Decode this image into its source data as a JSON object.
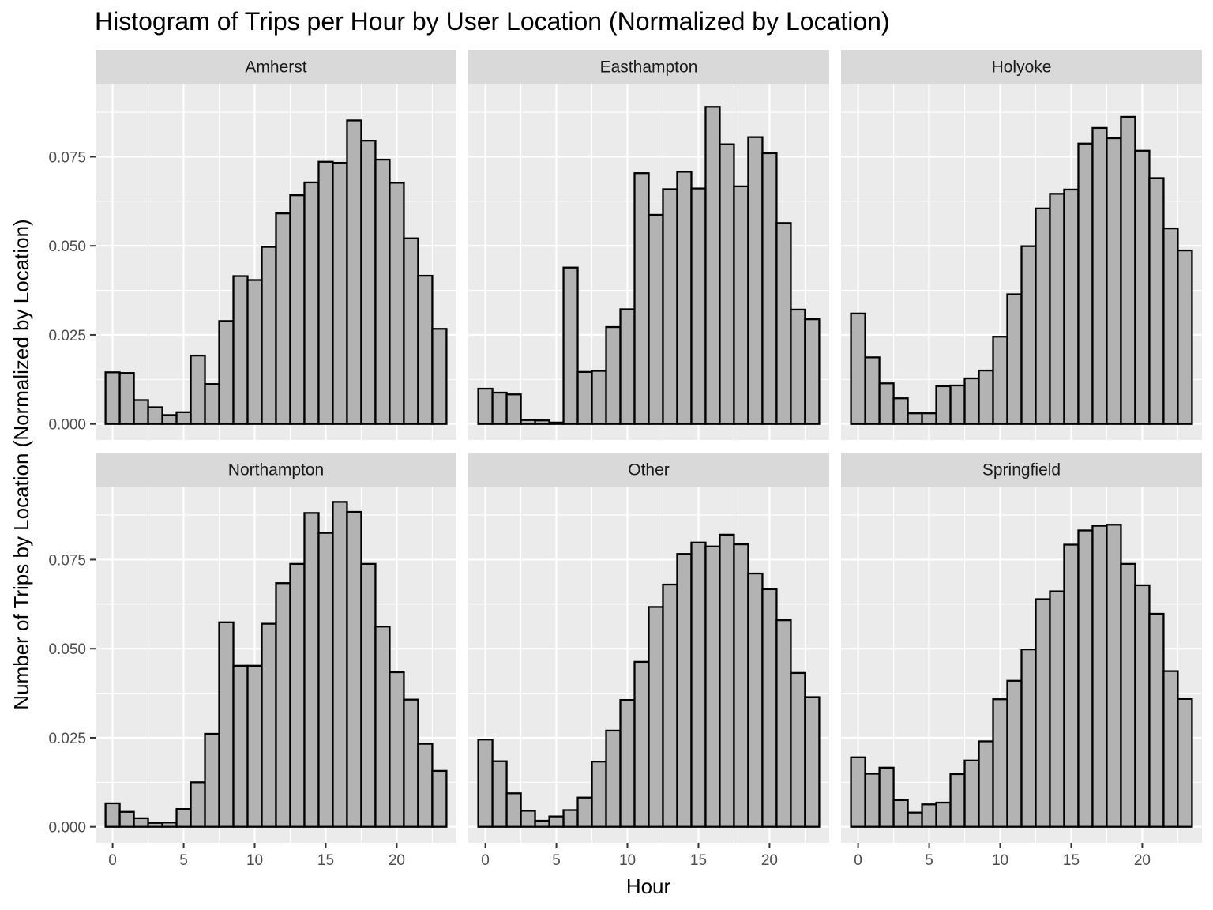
{
  "chart_data": {
    "type": "bar",
    "title": "Histogram of Trips per Hour by User Location (Normalized by Location)",
    "xlabel": "Hour",
    "ylabel": "Number of Trips by Location (Normalized by Location)",
    "x_ticks": [
      0,
      5,
      10,
      15,
      20
    ],
    "y_ticks": [
      0.0,
      0.025,
      0.05,
      0.075
    ],
    "y_tick_labels": [
      "0.000",
      "0.025",
      "0.050",
      "0.075"
    ],
    "xlim": [
      -1.2,
      24.2
    ],
    "ylim": [
      -0.0045,
      0.0955
    ],
    "categories": [
      0,
      1,
      2,
      3,
      4,
      5,
      6,
      7,
      8,
      9,
      10,
      11,
      12,
      13,
      14,
      15,
      16,
      17,
      18,
      19,
      20,
      21,
      22,
      23
    ],
    "grid": true,
    "facets": [
      {
        "name": "Amherst",
        "values": [
          0.0145,
          0.0143,
          0.0067,
          0.0047,
          0.0025,
          0.0033,
          0.0192,
          0.0112,
          0.0289,
          0.0415,
          0.0404,
          0.0497,
          0.0591,
          0.0642,
          0.0678,
          0.0736,
          0.0733,
          0.0852,
          0.0795,
          0.0742,
          0.0677,
          0.0521,
          0.0416,
          0.0267
        ]
      },
      {
        "name": "Easthampton",
        "values": [
          0.0099,
          0.0088,
          0.0083,
          0.0011,
          0.001,
          0.0004,
          0.0439,
          0.0146,
          0.0149,
          0.0272,
          0.0322,
          0.0704,
          0.0587,
          0.0659,
          0.0708,
          0.0661,
          0.089,
          0.0785,
          0.0667,
          0.0805,
          0.076,
          0.0564,
          0.0321,
          0.0294
        ]
      },
      {
        "name": "Holyoke",
        "values": [
          0.031,
          0.0187,
          0.0114,
          0.0072,
          0.003,
          0.003,
          0.0106,
          0.0108,
          0.0128,
          0.015,
          0.0245,
          0.0364,
          0.0499,
          0.0605,
          0.0646,
          0.0658,
          0.0787,
          0.0831,
          0.0802,
          0.0862,
          0.0767,
          0.069,
          0.0549,
          0.0487
        ]
      },
      {
        "name": "Northampton",
        "values": [
          0.0066,
          0.0042,
          0.0024,
          0.0011,
          0.0012,
          0.005,
          0.0125,
          0.0261,
          0.0574,
          0.0452,
          0.0452,
          0.057,
          0.0684,
          0.0738,
          0.0881,
          0.0825,
          0.0912,
          0.0884,
          0.0738,
          0.0562,
          0.0434,
          0.0357,
          0.0233,
          0.0157
        ]
      },
      {
        "name": "Other",
        "values": [
          0.0245,
          0.0184,
          0.0094,
          0.0045,
          0.0017,
          0.0029,
          0.0047,
          0.0082,
          0.0183,
          0.027,
          0.0356,
          0.0463,
          0.0617,
          0.068,
          0.0766,
          0.0798,
          0.0787,
          0.082,
          0.0793,
          0.0711,
          0.0667,
          0.058,
          0.0432,
          0.0364
        ]
      },
      {
        "name": "Springfield",
        "values": [
          0.0195,
          0.0149,
          0.0166,
          0.0075,
          0.004,
          0.0063,
          0.0068,
          0.0148,
          0.0186,
          0.024,
          0.0358,
          0.041,
          0.0498,
          0.0639,
          0.0661,
          0.0792,
          0.0832,
          0.0845,
          0.0848,
          0.0738,
          0.0678,
          0.0598,
          0.0437,
          0.0359
        ]
      }
    ]
  }
}
